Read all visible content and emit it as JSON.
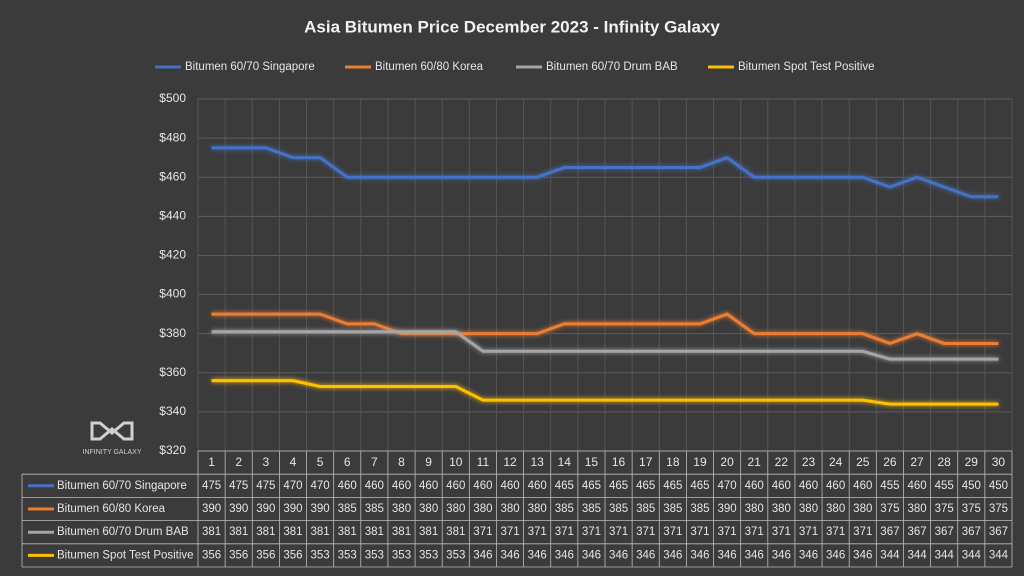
{
  "chart_data": {
    "type": "line",
    "title": "Asia Bitumen Price December 2023 - Infinity Galaxy",
    "watermark": "INFINITY GALAXY",
    "categories": [
      "1",
      "2",
      "3",
      "4",
      "5",
      "6",
      "7",
      "8",
      "9",
      "10",
      "11",
      "12",
      "13",
      "14",
      "15",
      "16",
      "17",
      "18",
      "19",
      "20",
      "21",
      "22",
      "23",
      "24",
      "25",
      "26",
      "27",
      "28",
      "29",
      "30"
    ],
    "series": [
      {
        "name": "Bitumen 60/70 Singapore",
        "color": "#4472c4",
        "values": [
          475,
          475,
          475,
          470,
          470,
          460,
          460,
          460,
          460,
          460,
          460,
          460,
          460,
          465,
          465,
          465,
          465,
          465,
          465,
          470,
          460,
          460,
          460,
          460,
          460,
          455,
          460,
          455,
          450,
          450
        ]
      },
      {
        "name": "Bitumen 60/80 Korea",
        "color": "#ed7d31",
        "values": [
          390,
          390,
          390,
          390,
          390,
          385,
          385,
          380,
          380,
          380,
          380,
          380,
          380,
          385,
          385,
          385,
          385,
          385,
          385,
          390,
          380,
          380,
          380,
          380,
          380,
          375,
          380,
          375,
          375,
          375
        ]
      },
      {
        "name": "Bitumen 60/70 Drum BAB",
        "color": "#a5a5a5",
        "values": [
          381,
          381,
          381,
          381,
          381,
          381,
          381,
          381,
          381,
          381,
          371,
          371,
          371,
          371,
          371,
          371,
          371,
          371,
          371,
          371,
          371,
          371,
          371,
          371,
          371,
          367,
          367,
          367,
          367,
          367
        ]
      },
      {
        "name": "Bitumen Spot Test Positive",
        "color": "#ffc000",
        "values": [
          356,
          356,
          356,
          356,
          353,
          353,
          353,
          353,
          353,
          353,
          346,
          346,
          346,
          346,
          346,
          346,
          346,
          346,
          346,
          346,
          346,
          346,
          346,
          346,
          346,
          344,
          344,
          344,
          344,
          344
        ]
      }
    ],
    "ylim": [
      320,
      500
    ],
    "yticks": [
      {
        "value": 320,
        "label": "$320"
      },
      {
        "value": 340,
        "label": "$340"
      },
      {
        "value": 360,
        "label": "$360"
      },
      {
        "value": 380,
        "label": "$380"
      },
      {
        "value": 400,
        "label": "$400"
      },
      {
        "value": 420,
        "label": "$420"
      },
      {
        "value": 440,
        "label": "$440"
      },
      {
        "value": 460,
        "label": "$460"
      },
      {
        "value": 480,
        "label": "$480"
      },
      {
        "value": 500,
        "label": "$500"
      }
    ],
    "grid": true,
    "legend": "top"
  }
}
